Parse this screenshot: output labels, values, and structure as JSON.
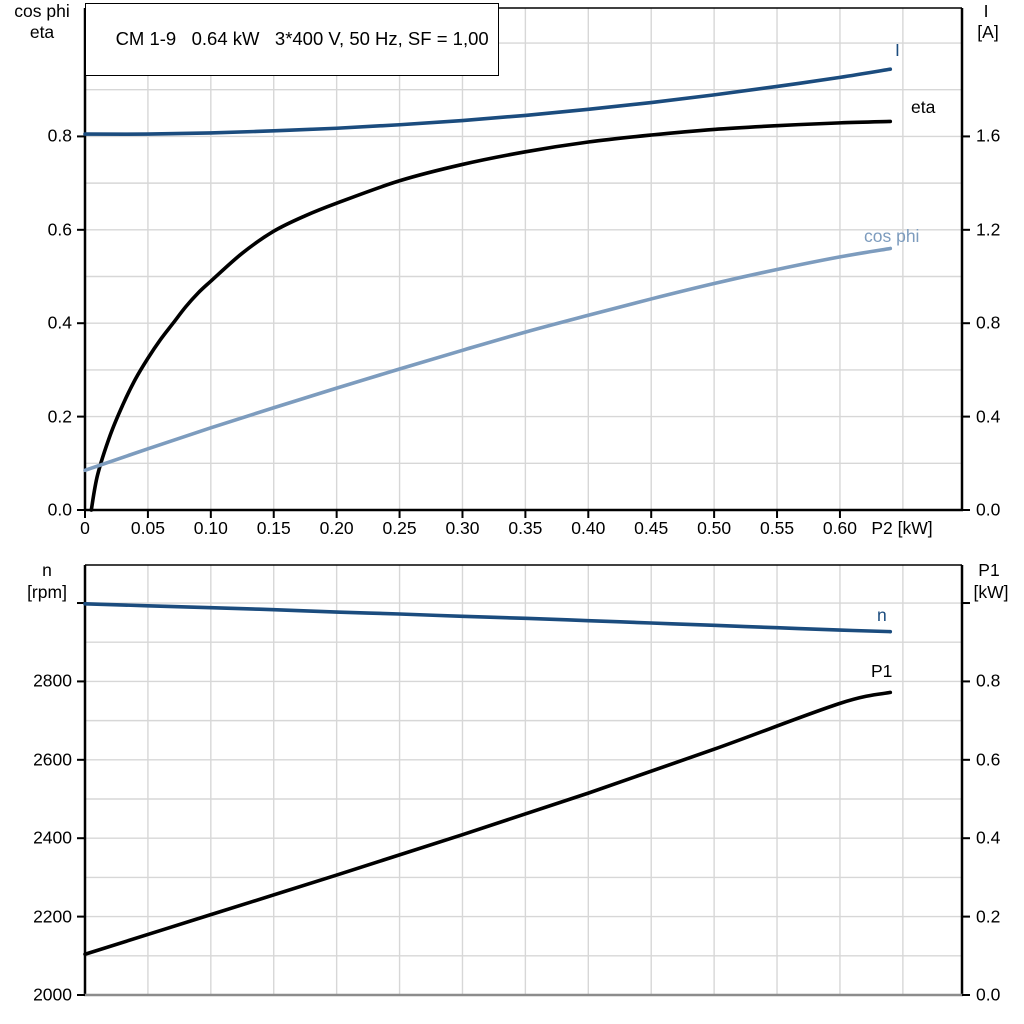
{
  "colors": {
    "dark_blue": "#1b4c7e",
    "light_blue": "#7d9cbe",
    "black": "#000000",
    "grid": "#d7d7d7",
    "axis": "#000000",
    "bottom_border_gray": "#8c8c8c"
  },
  "chart_data": [
    {
      "type": "line",
      "title": "CM 1-9   0.64 kW   3*400 V, 50 Hz, SF = 1,00",
      "xlabel": "P2 [kW]",
      "left_axis_label": [
        "cos phi",
        "eta"
      ],
      "right_axis_label": [
        "I",
        "[A]"
      ],
      "xlim": [
        0,
        0.697
      ],
      "ylim_left": [
        0,
        1.075
      ],
      "ylim_right": [
        0,
        2.15
      ],
      "grid": true,
      "x_grid_step": 0.05,
      "y_grid_step_left": 0.1,
      "x_tick_values": [
        0,
        0.05,
        0.1,
        0.15,
        0.2,
        0.25,
        0.3,
        0.35,
        0.4,
        0.45,
        0.5,
        0.55,
        0.6
      ],
      "x_tick_labels": [
        "0",
        "0.05",
        "0.10",
        "0.15",
        "0.20",
        "0.25",
        "0.30",
        "0.35",
        "0.40",
        "0.45",
        "0.50",
        "0.55",
        "0.60"
      ],
      "y_left_tick_values": [
        0,
        0.2,
        0.4,
        0.6,
        0.8
      ],
      "y_left_tick_labels": [
        "0.0",
        "0.2",
        "0.4",
        "0.6",
        "0.8"
      ],
      "y_right_tick_values": [
        0,
        0.4,
        0.8,
        1.2,
        1.6
      ],
      "y_right_tick_labels": [
        "0.0",
        "0.4",
        "0.8",
        "1.2",
        "1.6"
      ],
      "series": [
        {
          "name": "I",
          "label": "I",
          "axis": "right",
          "color": "#1b4c7e",
          "unit": "A",
          "x": [
            0,
            0.05,
            0.1,
            0.15,
            0.2,
            0.25,
            0.3,
            0.35,
            0.4,
            0.45,
            0.5,
            0.55,
            0.6,
            0.64
          ],
          "y": [
            1.61,
            1.61,
            1.615,
            1.624,
            1.635,
            1.65,
            1.668,
            1.69,
            1.716,
            1.745,
            1.778,
            1.814,
            1.853,
            1.888
          ]
        },
        {
          "name": "eta",
          "label": "eta",
          "axis": "left",
          "color": "#000000",
          "unit": "",
          "x": [
            0.005,
            0.01,
            0.02,
            0.03,
            0.04,
            0.05,
            0.06,
            0.07,
            0.08,
            0.09,
            0.1,
            0.125,
            0.15,
            0.175,
            0.2,
            0.25,
            0.3,
            0.35,
            0.4,
            0.45,
            0.5,
            0.55,
            0.6,
            0.64
          ],
          "y": [
            0,
            0.075,
            0.16,
            0.225,
            0.28,
            0.325,
            0.365,
            0.4,
            0.435,
            0.465,
            0.49,
            0.55,
            0.597,
            0.63,
            0.657,
            0.705,
            0.74,
            0.767,
            0.788,
            0.803,
            0.815,
            0.823,
            0.829,
            0.832
          ]
        },
        {
          "name": "cos phi",
          "label": "cos phi",
          "axis": "left",
          "color": "#7d9cbe",
          "unit": "",
          "x": [
            0,
            0.05,
            0.1,
            0.15,
            0.2,
            0.25,
            0.3,
            0.35,
            0.4,
            0.45,
            0.5,
            0.55,
            0.6,
            0.64
          ],
          "y": [
            0.085,
            0.131,
            0.176,
            0.219,
            0.261,
            0.302,
            0.342,
            0.381,
            0.417,
            0.452,
            0.485,
            0.515,
            0.542,
            0.56
          ]
        }
      ]
    },
    {
      "type": "line",
      "xlabel": "",
      "left_axis_label": [
        "n",
        "[rpm]"
      ],
      "right_axis_label": [
        "P1",
        "[kW]"
      ],
      "xlim": [
        0,
        0.697
      ],
      "ylim_left": [
        2000,
        3097
      ],
      "ylim_right": [
        0,
        1.097
      ],
      "grid": true,
      "x_grid_step": 0.05,
      "y_grid_step_left": 100,
      "x_tick_values": [],
      "x_tick_labels": [],
      "y_left_tick_values": [
        2000,
        2200,
        2400,
        2600,
        2800,
        3000
      ],
      "y_left_tick_labels": [
        "2000",
        "2200",
        "2400",
        "2600",
        "2800",
        ""
      ],
      "y_right_tick_values": [
        0,
        0.2,
        0.4,
        0.6,
        0.8,
        1.0
      ],
      "y_right_tick_labels": [
        "0.0",
        "0.2",
        "0.4",
        "0.6",
        "0.8",
        ""
      ],
      "series": [
        {
          "name": "n",
          "label": "n",
          "axis": "left",
          "color": "#1b4c7e",
          "unit": "rpm",
          "x": [
            0,
            0.05,
            0.1,
            0.15,
            0.2,
            0.25,
            0.3,
            0.35,
            0.4,
            0.45,
            0.5,
            0.55,
            0.6,
            0.64
          ],
          "y": [
            2998,
            2993,
            2988,
            2983,
            2977,
            2972,
            2966,
            2961,
            2955,
            2949,
            2943,
            2937,
            2931,
            2927
          ]
        },
        {
          "name": "P1",
          "label": "P1",
          "axis": "right",
          "color": "#000000",
          "unit": "kW",
          "x": [
            0,
            0.1,
            0.2,
            0.3,
            0.4,
            0.5,
            0.6,
            0.64
          ],
          "y": [
            0.104,
            0.205,
            0.306,
            0.409,
            0.515,
            0.627,
            0.744,
            0.772
          ]
        }
      ]
    }
  ]
}
